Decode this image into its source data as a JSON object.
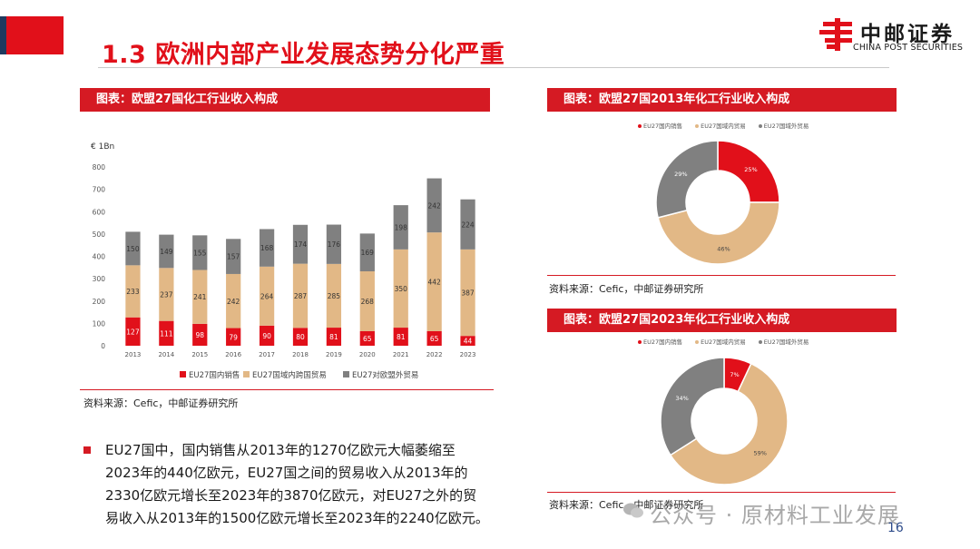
{
  "header": {
    "title": "1.3 欧洲内部产业发展态势分化严重",
    "logo_cn": "中邮证券",
    "logo_en": "CHINA POST SECURITIES"
  },
  "panels": {
    "bar_header": "图表：欧盟27国化工行业收入构成",
    "donut2013_header": "图表：欧盟27国2013年化工行业收入构成",
    "donut2023_header": "图表：欧盟27国2023年化工行业收入构成",
    "source": "资料来源：Cefic，中邮证券研究所"
  },
  "bullet": {
    "lines": [
      "EU27国中，国内销售从2013年的1270亿欧元大幅萎缩至",
      "2023年的440亿欧元，EU27国之间的贸易收入从2013年的",
      "2330亿欧元增长至2023年的3870亿欧元，对EU27之外的贸",
      "易收入从2013年的1500亿欧元增长至2023年的2240亿欧元。"
    ]
  },
  "footer": {
    "watermark": "公众号 · 原材料工业发展",
    "page": "16"
  },
  "colors": {
    "red": "#e1101a",
    "tan": "#e2b886",
    "gray": "#808080"
  },
  "chart_data": [
    {
      "type": "bar",
      "stacked": true,
      "title": "欧盟27国化工行业收入构成",
      "unit_label": "€ 1Bn",
      "categories": [
        "2013",
        "2014",
        "2015",
        "2016",
        "2017",
        "2018",
        "2019",
        "2020",
        "2021",
        "2022",
        "2023"
      ],
      "series": [
        {
          "name": "EU27国内销售",
          "values": [
            127,
            111,
            98,
            79,
            90,
            80,
            81,
            65,
            81,
            65,
            44
          ]
        },
        {
          "name": "EU27国域内跨国贸易",
          "values": [
            233,
            237,
            241,
            242,
            264,
            287,
            285,
            268,
            350,
            442,
            387
          ]
        },
        {
          "name": "EU27对欧盟外贸易",
          "values": [
            150,
            149,
            155,
            157,
            168,
            174,
            176,
            169,
            198,
            242,
            224
          ]
        }
      ],
      "yticks": [
        "0",
        "100",
        "200",
        "300",
        "400",
        "500",
        "600",
        "700",
        "800"
      ],
      "ylim": [
        0,
        800
      ],
      "legend_position": "bottom"
    },
    {
      "type": "pie",
      "variant": "donut",
      "title": "欧盟27国2013年化工行业收入构成",
      "labels": [
        "EU27国内销售",
        "EU27国域内贸易",
        "EU27国域外贸易"
      ],
      "values": [
        25,
        46,
        29
      ],
      "value_labels": [
        "25%",
        "46%",
        "29%"
      ]
    },
    {
      "type": "pie",
      "variant": "donut",
      "title": "欧盟27国2023年化工行业收入构成",
      "labels": [
        "EU27国内销售",
        "EU27国域内贸易",
        "EU27国域外贸易"
      ],
      "values": [
        7,
        59,
        34
      ],
      "value_labels": [
        "7%",
        "59%",
        "34%"
      ]
    }
  ]
}
